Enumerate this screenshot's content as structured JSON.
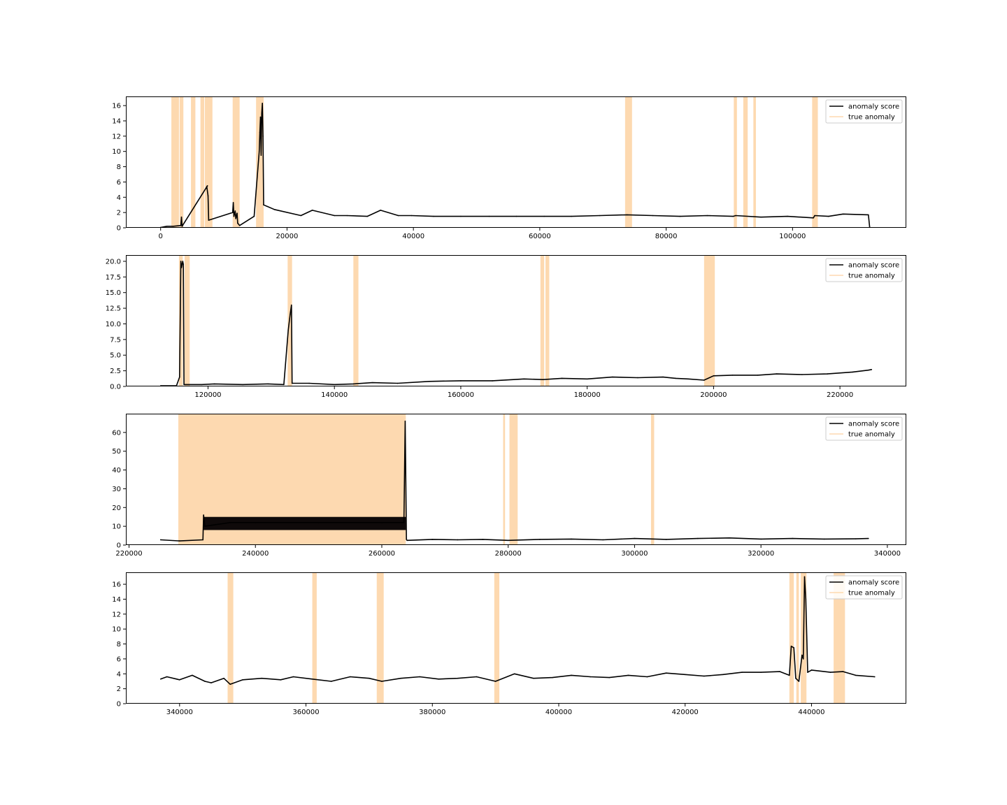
{
  "colors": {
    "score": "#000000",
    "anomaly": "#fdd9b0",
    "axes": "#000000"
  },
  "chart_data": [
    {
      "type": "line",
      "title": "",
      "xlabel": "",
      "ylabel": "",
      "xlim": [
        -5500,
        118000
      ],
      "ylim": [
        0,
        17.2
      ],
      "xticks": [
        0,
        20000,
        40000,
        60000,
        80000,
        100000
      ],
      "xtick_labels": [
        "0",
        "20000",
        "40000",
        "60000",
        "80000",
        "100000"
      ],
      "yticks": [
        0,
        2,
        4,
        6,
        8,
        10,
        12,
        14,
        16
      ],
      "ytick_labels": [
        "0",
        "2",
        "4",
        "6",
        "8",
        "10",
        "12",
        "14",
        "16"
      ],
      "legend": {
        "position": "top-right",
        "entries": [
          "anomaly score",
          "true anomaly"
        ]
      },
      "anomaly_ranges": [
        [
          1700,
          2900
        ],
        [
          3000,
          3600
        ],
        [
          4800,
          5500
        ],
        [
          6300,
          6900
        ],
        [
          7000,
          8200
        ],
        [
          11400,
          12500
        ],
        [
          15100,
          16300
        ],
        [
          73500,
          74600
        ],
        [
          90700,
          91200
        ],
        [
          92200,
          92900
        ],
        [
          93800,
          94200
        ],
        [
          103100,
          104000
        ]
      ],
      "series": [
        {
          "name": "anomaly score",
          "baseline": 0.1,
          "x": [
            0,
            1000,
            2000,
            3200,
            3300,
            3400,
            7400,
            7300,
            7500,
            7600,
            11400,
            11500,
            11600,
            11800,
            11900,
            12100,
            12200,
            12500,
            14800,
            15600,
            15700,
            15800,
            15900,
            16000,
            16100,
            16200,
            16300,
            18000,
            22200,
            24000,
            27500,
            29500,
            32700,
            34800,
            37600,
            39700,
            43200,
            47500,
            52000,
            56300,
            60700,
            65000,
            69500,
            73800,
            77900,
            82200,
            86500,
            90600,
            91000,
            95000,
            99200,
            103300,
            103500,
            105700,
            108000,
            112000,
            112200
          ],
          "y": [
            0.05,
            0.2,
            0.2,
            0.3,
            1.4,
            0.2,
            5.5,
            5.4,
            4.2,
            1.0,
            2.0,
            3.3,
            1.5,
            2.2,
            1.2,
            1.9,
            0.6,
            0.3,
            1.5,
            10.0,
            12.5,
            14.5,
            9.5,
            15.0,
            16.3,
            12.0,
            3.0,
            2.4,
            1.6,
            2.3,
            1.6,
            1.6,
            1.5,
            2.3,
            1.6,
            1.6,
            1.5,
            1.5,
            1.5,
            1.5,
            1.5,
            1.5,
            1.6,
            1.7,
            1.6,
            1.5,
            1.6,
            1.5,
            1.6,
            1.4,
            1.5,
            1.3,
            1.6,
            1.5,
            1.8,
            1.7,
            0.1
          ]
        }
      ]
    },
    {
      "type": "line",
      "title": "",
      "xlabel": "",
      "ylabel": "",
      "xlim": [
        107000,
        230500
      ],
      "ylim": [
        0,
        21
      ],
      "xticks": [
        120000,
        140000,
        160000,
        180000,
        200000,
        220000
      ],
      "xtick_labels": [
        "120000",
        "140000",
        "160000",
        "180000",
        "200000",
        "220000"
      ],
      "yticks": [
        0,
        2.5,
        5,
        7.5,
        10,
        12.5,
        15,
        17.5,
        20
      ],
      "ytick_labels": [
        "0.0",
        "2.5",
        "5.0",
        "7.5",
        "10.0",
        "12.5",
        "15.0",
        "17.5",
        "20.0"
      ],
      "legend": {
        "position": "top-right",
        "entries": [
          "anomaly score",
          "true anomaly"
        ]
      },
      "anomaly_ranges": [
        [
          115400,
          116000
        ],
        [
          116300,
          117100
        ],
        [
          132600,
          133300
        ],
        [
          143000,
          143800
        ],
        [
          172600,
          173200
        ],
        [
          173400,
          174000
        ],
        [
          198500,
          200200
        ]
      ],
      "series": [
        {
          "name": "anomaly score",
          "x": [
            112500,
            115000,
            115500,
            115700,
            115800,
            116000,
            116100,
            116200,
            117000,
            119000,
            121000,
            125500,
            129500,
            132000,
            132700,
            133000,
            133200,
            133300,
            136000,
            140000,
            143000,
            146000,
            150000,
            155000,
            160000,
            165000,
            170000,
            173000,
            176000,
            180000,
            184000,
            188000,
            192000,
            194000,
            196000,
            198500,
            200000,
            203000,
            207000,
            210000,
            214000,
            218000,
            222000,
            224500,
            225000
          ],
          "y": [
            0.1,
            0.1,
            1.5,
            20.0,
            19.0,
            20.0,
            19.5,
            0.3,
            0.3,
            0.3,
            0.4,
            0.3,
            0.4,
            0.3,
            9.0,
            11.5,
            13.0,
            0.5,
            0.5,
            0.3,
            0.4,
            0.6,
            0.5,
            0.8,
            0.9,
            0.9,
            1.2,
            1.1,
            1.3,
            1.2,
            1.5,
            1.4,
            1.5,
            1.3,
            1.2,
            1.0,
            1.7,
            1.8,
            1.8,
            2.0,
            1.9,
            2.0,
            2.3,
            2.6,
            2.7
          ]
        }
      ]
    },
    {
      "type": "line",
      "title": "",
      "xlabel": "",
      "ylabel": "",
      "xlim": [
        219500,
        343000
      ],
      "ylim": [
        0,
        70
      ],
      "xticks": [
        220000,
        240000,
        260000,
        280000,
        300000,
        320000,
        340000
      ],
      "xtick_labels": [
        "220000",
        "240000",
        "260000",
        "280000",
        "300000",
        "320000",
        "340000"
      ],
      "yticks": [
        0,
        10,
        20,
        30,
        40,
        50,
        60
      ],
      "ytick_labels": [
        "0",
        "10",
        "20",
        "30",
        "40",
        "50",
        "60"
      ],
      "legend": {
        "position": "top-right",
        "entries": [
          "anomaly score",
          "true anomaly"
        ]
      },
      "anomaly_ranges": [
        [
          227800,
          263800
        ],
        [
          279200,
          279500
        ],
        [
          280200,
          281500
        ],
        [
          302600,
          303100
        ]
      ],
      "band": {
        "x": [
          231800,
          263800
        ],
        "lower": 8,
        "upper": 15
      },
      "series": [
        {
          "name": "anomaly score",
          "x": [
            225000,
            228000,
            231700,
            231800,
            232000,
            236000,
            240000,
            250000,
            260000,
            263500,
            263700,
            263900,
            264000,
            268000,
            272000,
            276000,
            280000,
            285000,
            290000,
            295000,
            300000,
            305000,
            310000,
            315000,
            320000,
            325000,
            330000,
            335000,
            337000
          ],
          "y": [
            2.8,
            2.2,
            2.8,
            16.0,
            10.0,
            12.0,
            12.0,
            12.0,
            12.0,
            12.0,
            66.0,
            3.0,
            2.5,
            3.0,
            2.8,
            3.0,
            2.5,
            3.0,
            3.2,
            2.8,
            3.5,
            3.0,
            3.5,
            3.8,
            3.2,
            3.5,
            3.2,
            3.3,
            3.5
          ]
        }
      ]
    },
    {
      "type": "line",
      "title": "",
      "xlabel": "",
      "ylabel": "",
      "xlim": [
        331500,
        455000
      ],
      "ylim": [
        0,
        17.6
      ],
      "xticks": [
        340000,
        360000,
        380000,
        400000,
        420000,
        440000
      ],
      "xtick_labels": [
        "340000",
        "360000",
        "380000",
        "400000",
        "420000",
        "440000"
      ],
      "yticks": [
        0,
        2,
        4,
        6,
        8,
        10,
        12,
        14,
        16
      ],
      "ytick_labels": [
        "0",
        "2",
        "4",
        "6",
        "8",
        "10",
        "12",
        "14",
        "16"
      ],
      "legend": {
        "position": "top-right",
        "entries": [
          "anomaly score",
          "true anomaly"
        ]
      },
      "anomaly_ranges": [
        [
          347600,
          348500
        ],
        [
          361000,
          361700
        ],
        [
          371200,
          372300
        ],
        [
          389800,
          390600
        ],
        [
          436500,
          437200
        ],
        [
          437600,
          438000
        ],
        [
          438300,
          439200
        ],
        [
          443500,
          445300
        ]
      ],
      "series": [
        {
          "name": "anomaly score",
          "x": [
            337000,
            338000,
            340000,
            342000,
            344000,
            345000,
            347000,
            348000,
            350000,
            353000,
            356000,
            358000,
            361000,
            364000,
            367000,
            370000,
            372000,
            375000,
            378000,
            381000,
            384000,
            387000,
            390000,
            393000,
            396000,
            399000,
            402000,
            405000,
            408000,
            411000,
            414000,
            417000,
            420000,
            423000,
            426000,
            429000,
            432000,
            435000,
            436500,
            436800,
            437200,
            437500,
            438000,
            438500,
            438700,
            438900,
            439100,
            439400,
            440000,
            443000,
            445000,
            447000,
            450000
          ],
          "y": [
            3.3,
            3.6,
            3.2,
            3.8,
            3.0,
            2.8,
            3.4,
            2.6,
            3.2,
            3.4,
            3.2,
            3.6,
            3.3,
            3.0,
            3.6,
            3.4,
            3.0,
            3.4,
            3.6,
            3.3,
            3.4,
            3.6,
            3.0,
            4.0,
            3.4,
            3.5,
            3.8,
            3.6,
            3.5,
            3.8,
            3.6,
            4.1,
            3.9,
            3.7,
            3.9,
            4.2,
            4.2,
            4.3,
            3.8,
            7.7,
            7.5,
            3.4,
            3.0,
            6.5,
            6.0,
            17.0,
            14.0,
            4.2,
            4.5,
            4.2,
            4.3,
            3.8,
            3.6
          ]
        }
      ]
    }
  ]
}
